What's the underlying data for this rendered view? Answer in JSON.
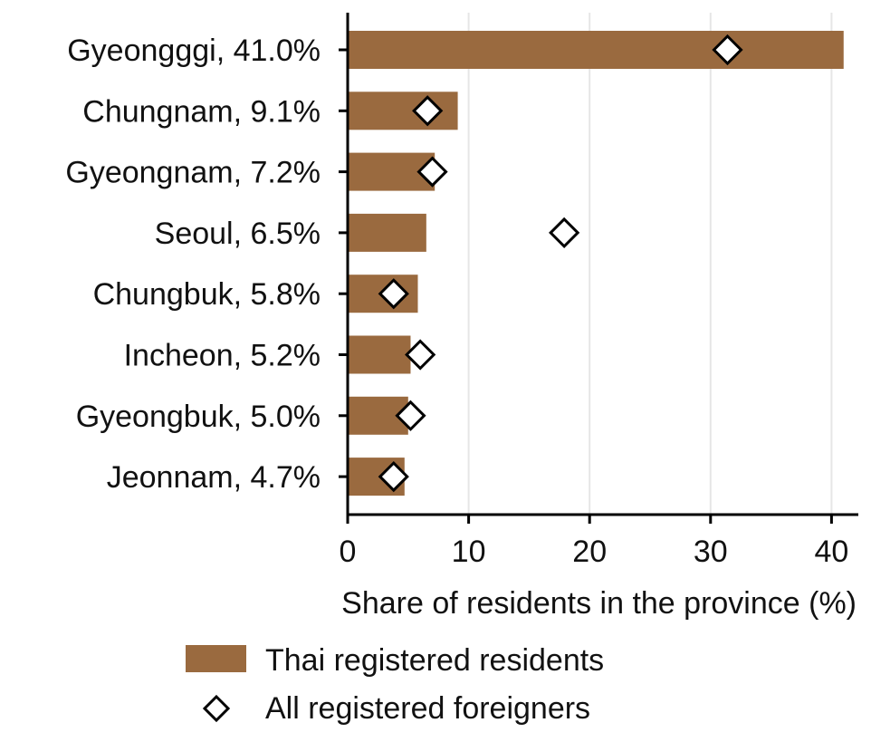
{
  "chart_data": {
    "type": "bar",
    "orientation": "horizontal",
    "categories": [
      "Gyeongggi, 41.0%",
      "Chungnam, 9.1%",
      "Gyeongnam, 7.2%",
      "Seoul, 6.5%",
      "Chungbuk, 5.8%",
      "Incheon, 5.2%",
      "Gyeongbuk, 5.0%",
      "Jeonnam, 4.7%"
    ],
    "series": [
      {
        "name": "Thai registered residents",
        "type": "bar",
        "color": "#9a6a3f",
        "values": [
          41.0,
          9.1,
          7.2,
          6.5,
          5.8,
          5.2,
          5.0,
          4.7
        ]
      },
      {
        "name": "All registered foreigners",
        "type": "scatter",
        "marker": "diamond-open",
        "values": [
          31.4,
          6.6,
          7.0,
          17.9,
          3.8,
          6.0,
          5.2,
          3.8
        ]
      }
    ],
    "xlabel": "Share of residents in the province (%)",
    "ylabel": "",
    "xlim": [
      0,
      42
    ],
    "xticks": [
      0,
      10,
      20,
      30,
      40
    ],
    "grid": "vertical",
    "legend": "bottom"
  }
}
